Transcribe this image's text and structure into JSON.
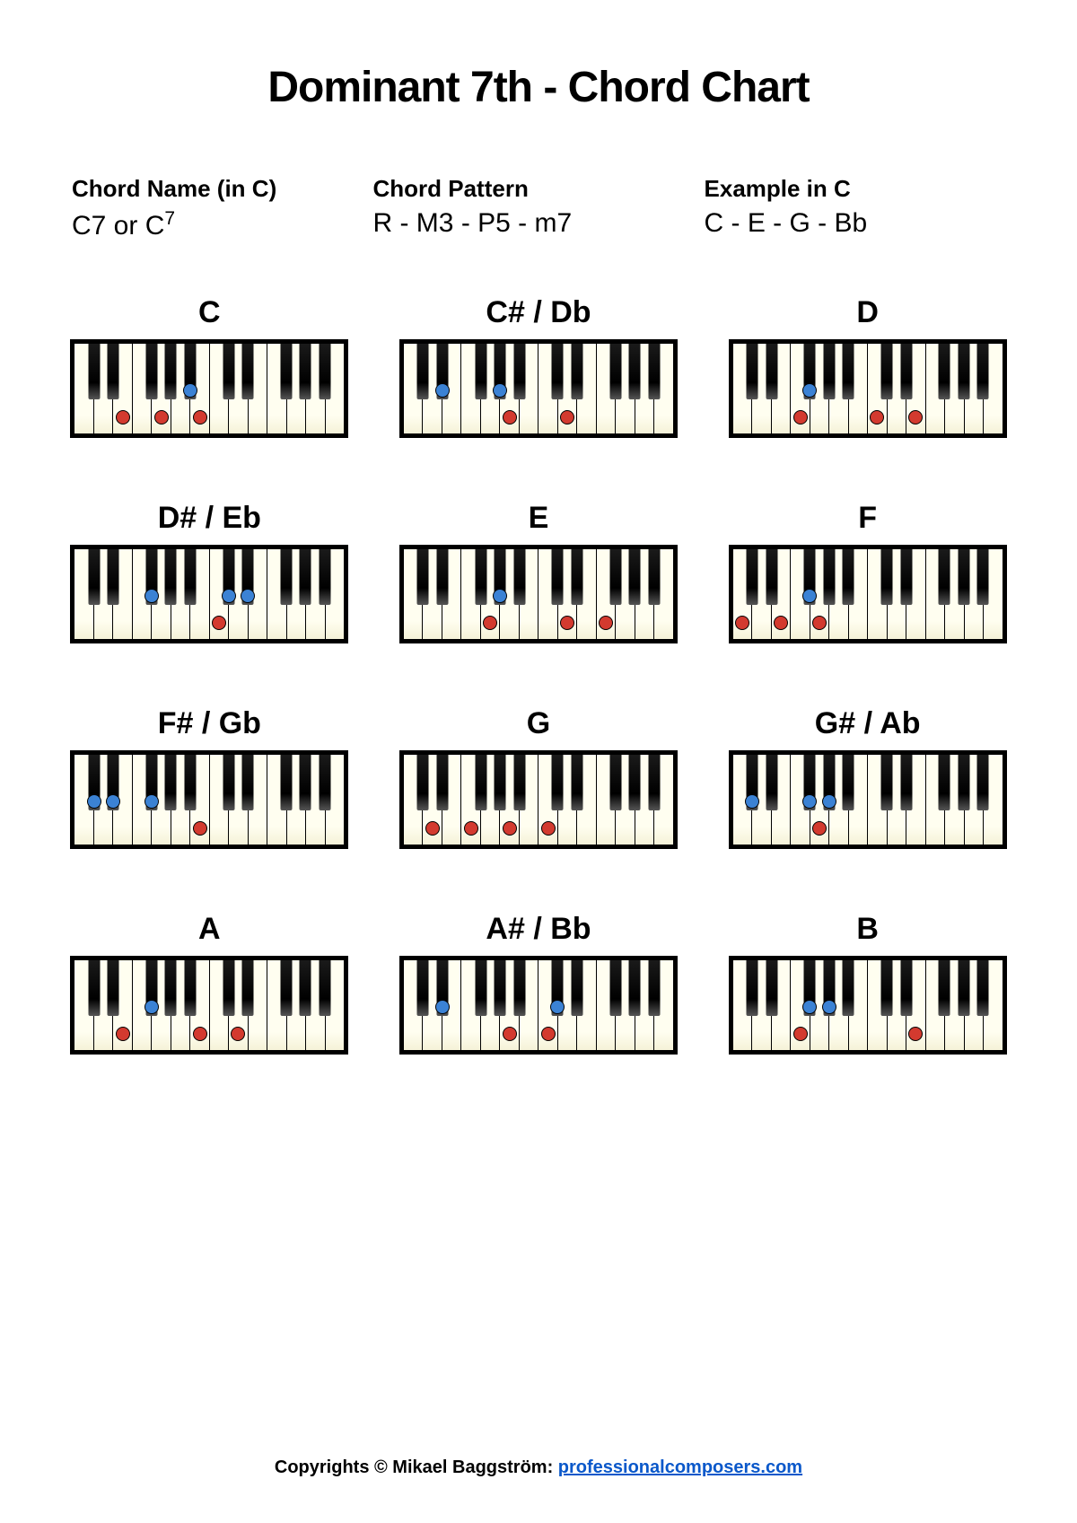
{
  "title": "Dominant 7th - Chord Chart",
  "info": {
    "col1_label": "Chord Name (in C)",
    "col1_value_html": "C7 or C<span class='sup'>7</span>",
    "col2_label": "Chord Pattern",
    "col2_value": "R - M3 - P5 - m7",
    "col3_label": "Example in C",
    "col3_value": "C - E - G - Bb"
  },
  "keyboard": {
    "white_keys": 14,
    "white_key_color": "#fdfbe8",
    "black_key_color": "#000000",
    "border_color": "#000000",
    "dot_red": "#d33a2f",
    "dot_blue": "#3b82d4",
    "black_key_positions_over_white_boundaries": [
      1,
      2,
      4,
      5,
      6,
      8,
      9,
      11,
      12,
      13
    ]
  },
  "chords": [
    {
      "label": "C",
      "notes": [
        {
          "w": 2,
          "c": "red"
        },
        {
          "w": 4,
          "c": "red"
        },
        {
          "w": 6,
          "c": "red"
        },
        {
          "b": 6,
          "c": "blue"
        }
      ]
    },
    {
      "label": "C# / Db",
      "notes": [
        {
          "b": 2,
          "c": "blue"
        },
        {
          "w": 5,
          "c": "red"
        },
        {
          "b": 5,
          "c": "blue"
        },
        {
          "w": 8,
          "c": "red"
        }
      ]
    },
    {
      "label": "D",
      "notes": [
        {
          "w": 3,
          "c": "red"
        },
        {
          "b": 4,
          "c": "blue"
        },
        {
          "w": 7,
          "c": "red"
        },
        {
          "w": 9,
          "c": "red"
        }
      ]
    },
    {
      "label": "D# / Eb",
      "notes": [
        {
          "b": 4,
          "c": "blue"
        },
        {
          "w": 7,
          "c": "red"
        },
        {
          "b": 8,
          "c": "blue"
        },
        {
          "b": 9,
          "c": "blue"
        }
      ]
    },
    {
      "label": "E",
      "notes": [
        {
          "w": 4,
          "c": "red"
        },
        {
          "b": 5,
          "c": "blue"
        },
        {
          "w": 8,
          "c": "red"
        },
        {
          "w": 10,
          "c": "red"
        }
      ]
    },
    {
      "label": "F",
      "notes": [
        {
          "w": 0,
          "c": "red"
        },
        {
          "w": 2,
          "c": "red"
        },
        {
          "w": 4,
          "c": "red"
        },
        {
          "b": 4,
          "c": "blue"
        }
      ]
    },
    {
      "label": "F# / Gb",
      "notes": [
        {
          "b": 1,
          "c": "blue"
        },
        {
          "b": 2,
          "c": "blue"
        },
        {
          "b": 4,
          "c": "blue"
        },
        {
          "w": 6,
          "c": "red"
        }
      ]
    },
    {
      "label": "G",
      "notes": [
        {
          "w": 1,
          "c": "red"
        },
        {
          "w": 3,
          "c": "red"
        },
        {
          "w": 5,
          "c": "red"
        },
        {
          "w": 7,
          "c": "red"
        }
      ]
    },
    {
      "label": "G# / Ab",
      "notes": [
        {
          "b": 1,
          "c": "blue"
        },
        {
          "w": 4,
          "c": "red"
        },
        {
          "b": 4,
          "c": "blue"
        },
        {
          "b": 5,
          "c": "blue"
        }
      ]
    },
    {
      "label": "A",
      "notes": [
        {
          "w": 2,
          "c": "red"
        },
        {
          "b": 4,
          "c": "blue"
        },
        {
          "w": 6,
          "c": "red"
        },
        {
          "w": 8,
          "c": "red"
        }
      ]
    },
    {
      "label": "A# / Bb",
      "notes": [
        {
          "b": 2,
          "c": "blue"
        },
        {
          "w": 5,
          "c": "red"
        },
        {
          "w": 7,
          "c": "red"
        },
        {
          "b": 8,
          "c": "blue"
        }
      ]
    },
    {
      "label": "B",
      "notes": [
        {
          "w": 3,
          "c": "red"
        },
        {
          "b": 4,
          "c": "blue"
        },
        {
          "b": 5,
          "c": "blue"
        },
        {
          "w": 9,
          "c": "red"
        }
      ]
    }
  ],
  "footer": {
    "text": "Copyrights © Mikael Baggström: ",
    "link_text": "professionalcomposers.com",
    "link_href": "#"
  }
}
